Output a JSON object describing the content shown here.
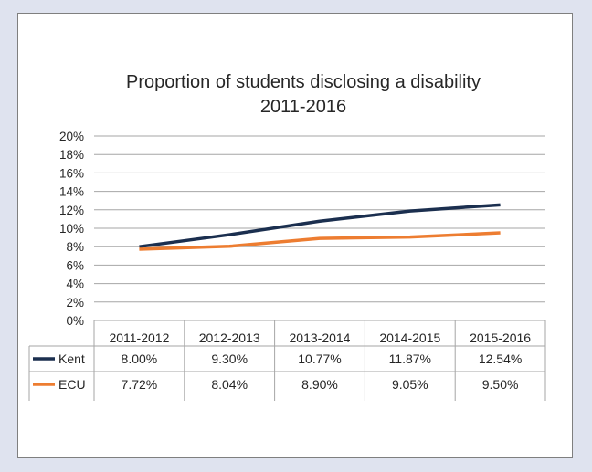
{
  "chart_data": {
    "type": "line",
    "title": "Proportion of students disclosing a disability",
    "subtitle": "2011-2016",
    "categories": [
      "2011-2012",
      "2012-2013",
      "2013-2014",
      "2014-2015",
      "2015-2016"
    ],
    "ylim": [
      0,
      20
    ],
    "yticks": [
      "0%",
      "2%",
      "4%",
      "6%",
      "8%",
      "10%",
      "12%",
      "14%",
      "16%",
      "18%",
      "20%"
    ],
    "grid": true,
    "legend_placement": "data-table",
    "series": [
      {
        "name": "Kent",
        "color": "#1b2f4f",
        "values": [
          8.0,
          9.3,
          10.77,
          11.87,
          12.54
        ],
        "labels": [
          "8.00%",
          "9.30%",
          "10.77%",
          "11.87%",
          "12.54%"
        ]
      },
      {
        "name": "ECU",
        "color": "#ed7d31",
        "values": [
          7.72,
          8.04,
          8.9,
          9.05,
          9.5
        ],
        "labels": [
          "7.72%",
          "8.04%",
          "8.90%",
          "9.05%",
          "9.50%"
        ]
      }
    ]
  }
}
